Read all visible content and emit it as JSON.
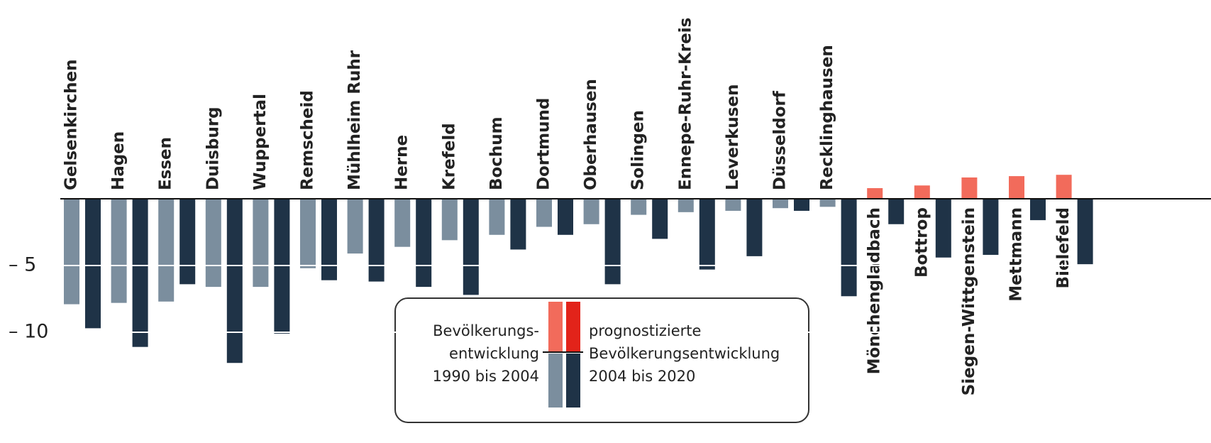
{
  "chart_data": {
    "type": "bar",
    "categories": [
      "Gelsenkirchen",
      "Hagen",
      "Essen",
      "Duisburg",
      "Wuppertal",
      "Remscheid",
      "Mühlheim Ruhr",
      "Herne",
      "Krefeld",
      "Bochum",
      "Dortmund",
      "Oberhausen",
      "Solingen",
      "Ennepe-Ruhr-Kreis",
      "Leverkusen",
      "Düsseldorf",
      "Recklinghausen",
      "Mönchengladbach",
      "Bottrop",
      "Siegen-Wittgenstein",
      "Mettmann",
      "Bielefeld"
    ],
    "series": [
      {
        "color": "#7b8e9e",
        "positive_color": "#f26b5b",
        "values": [
          -7.9,
          -7.8,
          -7.7,
          -6.6,
          -6.6,
          -5.2,
          -4.1,
          -3.6,
          -3.1,
          -2.7,
          -2.1,
          -1.9,
          -1.2,
          -1.0,
          -0.9,
          -0.7,
          -0.6,
          0.8,
          1.0,
          1.6,
          1.7,
          1.8
        ]
      },
      {
        "color": "#1f3347",
        "positive_color": "#e2231a",
        "values": [
          -9.7,
          -11.1,
          -6.4,
          -12.3,
          -10.1,
          -6.1,
          -6.2,
          -6.6,
          -7.2,
          -3.8,
          -2.7,
          -6.4,
          -3.0,
          -5.3,
          -4.3,
          -0.9,
          -7.3,
          -1.9,
          -4.4,
          -4.2,
          -1.6,
          -4.9
        ]
      }
    ],
    "legend_lines": [
      [
        "Bevölkerungs-",
        "entwicklung",
        "1990 bis 2004"
      ],
      [
        "prognostizierte",
        "Bevölkerungsentwicklung",
        "2004 bis 2020"
      ]
    ],
    "ylim": [
      -18.3,
      14.9
    ],
    "yticks": [
      {
        "value": -5,
        "label": "– 5"
      },
      {
        "value": -10,
        "label": "– 10"
      }
    ],
    "grid": true,
    "grid_color": "#ffffff"
  }
}
